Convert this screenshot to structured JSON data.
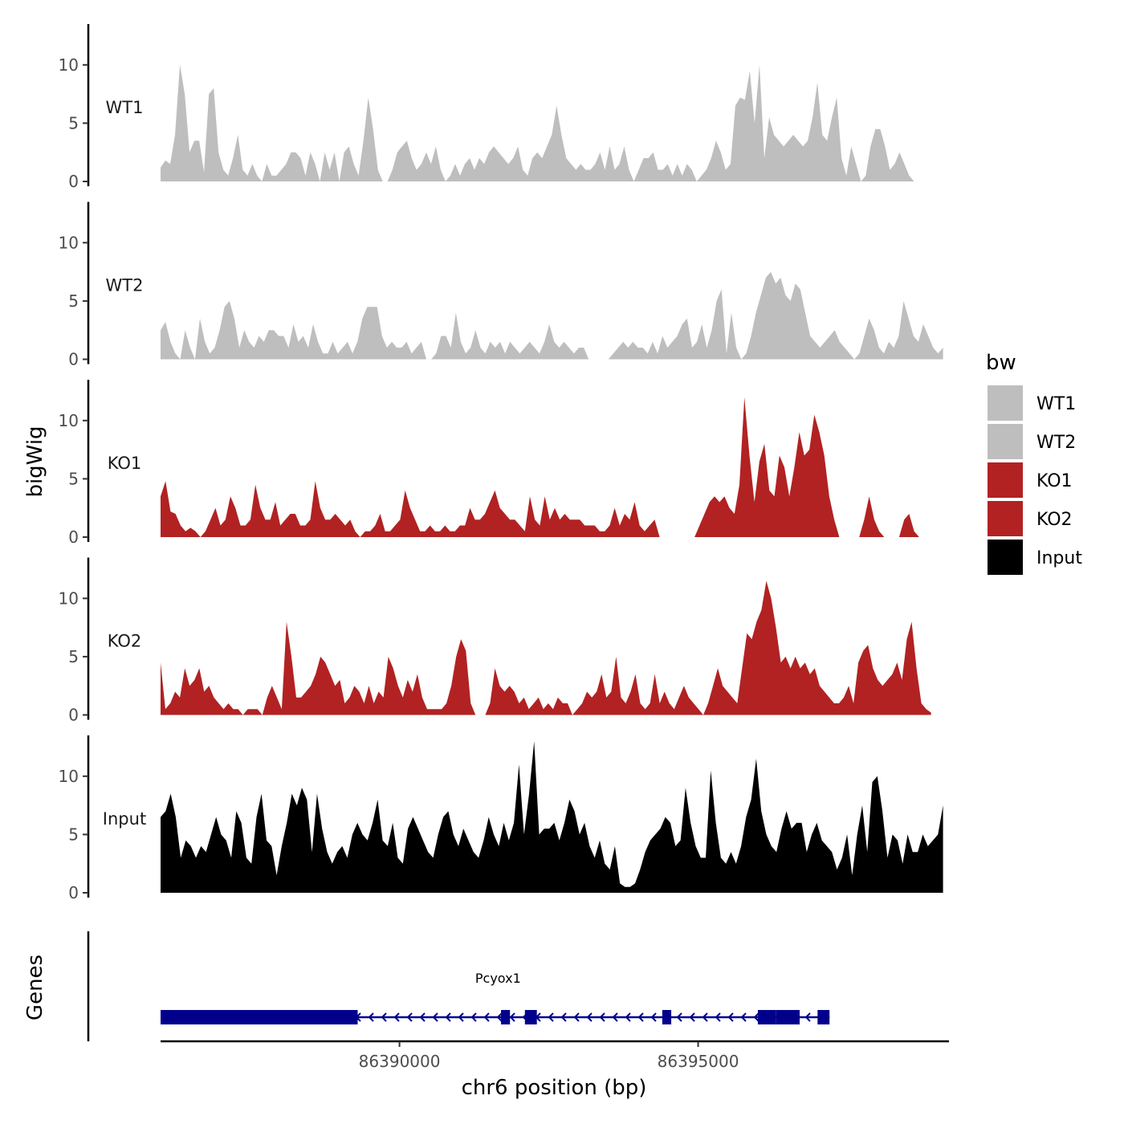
{
  "chart_data": {
    "type": "area",
    "region": {
      "chrom": "chr6",
      "start": 86386000,
      "end": 86399200
    },
    "xlabel": "chr6 position (bp)",
    "ylabel": "bigWig",
    "genes_label": "Genes",
    "x_ticks": [
      86390000,
      86395000
    ],
    "x_tick_labels": [
      "86390000",
      "86395000"
    ],
    "ylim": [
      0,
      13.5
    ],
    "y_ticks": [
      0,
      5,
      10
    ],
    "y_tick_labels": [
      "0",
      "5",
      "10"
    ],
    "legend": {
      "title": "bw",
      "entries": [
        {
          "name": "WT1",
          "color": "#BEBEBE"
        },
        {
          "name": "WT2",
          "color": "#BEBEBE"
        },
        {
          "name": "KO1",
          "color": "#B22222"
        },
        {
          "name": "KO2",
          "color": "#B22222"
        },
        {
          "name": "Input",
          "color": "#000000"
        }
      ]
    },
    "series": [
      {
        "name": "WT1",
        "color": "#BEBEBE",
        "x_start": 86386000,
        "x_end": 86399100,
        "values": [
          1.2,
          1.8,
          1.5,
          4.0,
          10.0,
          7.5,
          2.5,
          3.5,
          3.5,
          0.8,
          7.5,
          8.0,
          2.5,
          1.0,
          0.5,
          2.0,
          4.0,
          1.0,
          0.5,
          1.5,
          0.5,
          0.0,
          1.5,
          0.5,
          0.5,
          1.0,
          1.5,
          2.5,
          2.5,
          2.0,
          0.5,
          2.5,
          1.5,
          0.0,
          2.5,
          1.0,
          2.5,
          0.0,
          2.5,
          3.0,
          1.5,
          0.5,
          3.5,
          7.2,
          4.5,
          1.0,
          0.0,
          0.0,
          1.0,
          2.5,
          3.0,
          3.5,
          2.0,
          1.0,
          1.5,
          2.5,
          1.5,
          3.0,
          1.0,
          0.0,
          0.5,
          1.5,
          0.5,
          1.5,
          2.0,
          1.0,
          2.0,
          1.5,
          2.5,
          3.0,
          2.5,
          2.0,
          1.5,
          2.0,
          3.0,
          1.0,
          0.5,
          2.0,
          2.5,
          2.0,
          3.0,
          4.0,
          6.5,
          4.0,
          2.0,
          1.5,
          1.0,
          1.5,
          1.0,
          1.0,
          1.5,
          2.5,
          1.0,
          3.0,
          1.0,
          1.5,
          3.0,
          1.0,
          0.0,
          1.0,
          2.0,
          2.0,
          2.5,
          1.0,
          1.0,
          1.5,
          0.5,
          1.5,
          0.5,
          1.5,
          1.0,
          0.0,
          0.5,
          1.0,
          2.0,
          3.5,
          2.5,
          1.0,
          1.5,
          6.5,
          7.2,
          7.0,
          9.5,
          5.0,
          10.0,
          2.0,
          5.5,
          4.0,
          3.5,
          3.0,
          3.5,
          4.0,
          3.5,
          3.0,
          3.5,
          5.5,
          8.5,
          4.0,
          3.5,
          5.5,
          7.2,
          2.0,
          0.5,
          3.0,
          1.5,
          0.0,
          0.5,
          3.0,
          4.5,
          4.5,
          3.0,
          1.0,
          1.5,
          2.5,
          1.5,
          0.5,
          0.0,
          0.0,
          0.0,
          0.0,
          0.0,
          0.0,
          0.0
        ]
      },
      {
        "name": "WT2",
        "color": "#BEBEBE",
        "x_start": 86386000,
        "x_end": 86399100,
        "values": [
          2.5,
          3.2,
          1.5,
          0.5,
          0.0,
          2.5,
          1.0,
          0.0,
          3.5,
          1.5,
          0.5,
          1.0,
          2.5,
          4.5,
          5.0,
          3.5,
          1.0,
          2.5,
          1.5,
          1.0,
          2.0,
          1.5,
          2.5,
          2.5,
          2.0,
          2.0,
          1.0,
          3.0,
          1.5,
          2.0,
          1.0,
          3.0,
          1.5,
          0.5,
          0.5,
          1.5,
          0.5,
          1.0,
          1.5,
          0.5,
          1.5,
          3.5,
          4.5,
          4.5,
          4.5,
          2.0,
          1.0,
          1.5,
          1.0,
          1.0,
          1.5,
          0.5,
          1.0,
          1.5,
          0.0,
          0.0,
          0.5,
          2.0,
          2.0,
          1.0,
          4.0,
          1.5,
          0.5,
          1.0,
          2.5,
          1.0,
          0.5,
          1.5,
          1.0,
          1.5,
          0.5,
          1.5,
          1.0,
          0.5,
          1.0,
          1.5,
          1.0,
          0.5,
          1.5,
          3.0,
          1.5,
          1.0,
          1.5,
          1.0,
          0.5,
          1.0,
          1.0,
          0.0,
          0.0,
          0.0,
          0.0,
          0.0,
          0.5,
          1.0,
          1.5,
          1.0,
          1.5,
          1.0,
          1.0,
          0.5,
          1.5,
          0.5,
          2.0,
          1.0,
          1.5,
          2.0,
          3.0,
          3.5,
          1.0,
          1.5,
          3.0,
          1.0,
          2.5,
          5.0,
          6.0,
          0.5,
          4.0,
          1.0,
          0.0,
          0.5,
          2.0,
          4.0,
          5.5,
          7.0,
          7.5,
          6.5,
          7.0,
          5.5,
          5.0,
          6.5,
          6.0,
          4.0,
          2.0,
          1.5,
          1.0,
          1.5,
          2.0,
          2.5,
          1.5,
          1.0,
          0.5,
          0.0,
          0.5,
          2.0,
          3.5,
          2.5,
          1.0,
          0.5,
          1.5,
          1.0,
          2.0,
          5.0,
          3.5,
          2.0,
          1.5,
          3.0,
          2.0,
          1.0,
          0.5,
          1.0
        ]
      },
      {
        "name": "KO1",
        "color": "#B22222",
        "x_start": 86386000,
        "x_end": 86398700,
        "values": [
          3.5,
          4.8,
          2.2,
          2.0,
          1.0,
          0.5,
          0.8,
          0.5,
          0.0,
          0.5,
          1.5,
          2.5,
          1.0,
          1.5,
          3.5,
          2.5,
          1.0,
          1.0,
          1.5,
          4.5,
          2.5,
          1.5,
          1.5,
          3.0,
          1.0,
          1.5,
          2.0,
          2.0,
          1.0,
          1.0,
          1.5,
          4.8,
          2.5,
          1.5,
          1.5,
          2.0,
          1.5,
          1.0,
          1.5,
          0.5,
          0.0,
          0.5,
          0.5,
          1.0,
          2.0,
          0.5,
          0.5,
          1.0,
          1.5,
          4.0,
          2.5,
          1.5,
          0.5,
          0.5,
          1.0,
          0.5,
          0.5,
          1.0,
          0.5,
          0.5,
          1.0,
          1.0,
          2.5,
          1.5,
          1.5,
          2.0,
          3.0,
          4.0,
          2.5,
          2.0,
          1.5,
          1.5,
          1.0,
          0.5,
          3.5,
          1.5,
          1.0,
          3.5,
          1.5,
          2.5,
          1.5,
          2.0,
          1.5,
          1.5,
          1.5,
          1.0,
          1.0,
          1.0,
          0.5,
          0.5,
          1.0,
          2.5,
          1.0,
          2.0,
          1.5,
          3.0,
          1.0,
          0.5,
          1.0,
          1.5,
          0.0,
          0.0,
          0.0,
          0.0,
          0.0,
          0.0,
          0.0,
          0.0,
          1.0,
          2.0,
          3.0,
          3.5,
          3.0,
          3.5,
          2.5,
          2.0,
          4.5,
          12.0,
          7.0,
          3.0,
          6.5,
          8.0,
          4.0,
          3.5,
          7.0,
          6.0,
          3.5,
          6.0,
          9.0,
          7.0,
          7.5,
          10.5,
          9.0,
          7.0,
          3.5,
          1.5,
          0.0,
          0.0,
          0.0,
          0.0,
          0.0,
          1.5,
          3.5,
          1.5,
          0.5,
          0.0,
          0.0,
          0.0,
          0.0,
          1.5,
          2.0,
          0.5,
          0.0
        ]
      },
      {
        "name": "KO2",
        "color": "#B22222",
        "x_start": 86386000,
        "x_end": 86398900,
        "values": [
          4.5,
          0.5,
          1.0,
          2.0,
          1.5,
          4.0,
          2.5,
          3.0,
          4.0,
          2.0,
          2.5,
          1.5,
          1.0,
          0.5,
          1.0,
          0.5,
          0.5,
          0.0,
          0.5,
          0.5,
          0.5,
          0.0,
          1.5,
          2.5,
          1.5,
          0.5,
          8.0,
          5.0,
          1.5,
          1.5,
          2.0,
          2.5,
          3.5,
          5.0,
          4.5,
          3.5,
          2.5,
          3.0,
          1.0,
          1.5,
          2.5,
          2.0,
          1.0,
          2.5,
          1.0,
          2.0,
          1.5,
          5.0,
          4.0,
          2.5,
          1.5,
          3.0,
          2.0,
          3.5,
          1.5,
          0.5,
          0.5,
          0.5,
          0.5,
          1.0,
          2.5,
          5.0,
          6.5,
          5.5,
          1.0,
          0.0,
          0.0,
          0.0,
          1.0,
          4.0,
          2.5,
          2.0,
          2.5,
          2.0,
          1.0,
          1.5,
          0.5,
          1.0,
          1.5,
          0.5,
          1.0,
          0.5,
          1.5,
          1.0,
          1.0,
          0.0,
          0.5,
          1.0,
          2.0,
          1.5,
          2.0,
          3.5,
          1.5,
          2.0,
          5.0,
          1.5,
          1.0,
          2.0,
          3.5,
          1.0,
          0.5,
          1.0,
          3.5,
          1.0,
          2.0,
          1.0,
          0.5,
          1.5,
          2.5,
          1.5,
          1.0,
          0.5,
          0.0,
          1.0,
          2.5,
          4.0,
          2.5,
          2.0,
          1.5,
          1.0,
          4.0,
          7.0,
          6.5,
          8.0,
          9.0,
          11.5,
          10.0,
          7.5,
          4.5,
          5.0,
          4.0,
          5.0,
          4.0,
          4.5,
          3.5,
          4.0,
          2.5,
          2.0,
          1.5,
          1.0,
          1.0,
          1.5,
          2.5,
          1.0,
          4.5,
          5.5,
          6.0,
          4.0,
          3.0,
          2.5,
          3.0,
          3.5,
          4.5,
          3.0,
          6.5,
          8.0,
          4.0,
          1.0,
          0.5,
          0.2
        ]
      },
      {
        "name": "Input",
        "color": "#000000",
        "x_start": 86386000,
        "x_end": 86399100,
        "values": [
          6.5,
          7.0,
          8.5,
          6.5,
          3.0,
          4.5,
          4.0,
          3.0,
          4.0,
          3.5,
          5.0,
          6.5,
          5.0,
          4.5,
          3.0,
          7.0,
          6.0,
          3.0,
          2.5,
          6.5,
          8.5,
          4.5,
          4.0,
          1.5,
          4.0,
          6.0,
          8.5,
          7.5,
          9.0,
          8.0,
          3.5,
          8.5,
          5.5,
          3.5,
          2.5,
          3.5,
          4.0,
          3.0,
          5.0,
          6.0,
          5.0,
          4.5,
          6.0,
          8.0,
          4.5,
          4.0,
          6.0,
          3.0,
          2.5,
          5.5,
          6.5,
          5.5,
          4.5,
          3.5,
          3.0,
          5.0,
          6.5,
          7.0,
          5.0,
          4.0,
          5.5,
          4.5,
          3.5,
          3.0,
          4.5,
          6.5,
          5.0,
          4.0,
          6.0,
          4.5,
          6.0,
          11.0,
          5.0,
          8.5,
          13.0,
          5.0,
          5.5,
          5.5,
          6.0,
          4.5,
          6.0,
          8.0,
          7.0,
          5.0,
          6.0,
          4.0,
          3.0,
          4.5,
          2.5,
          2.0,
          4.0,
          0.8,
          0.5,
          0.5,
          0.8,
          2.0,
          3.5,
          4.5,
          5.0,
          5.5,
          6.5,
          6.0,
          4.0,
          4.5,
          9.0,
          6.0,
          4.0,
          3.0,
          3.0,
          10.5,
          6.0,
          3.0,
          2.5,
          3.5,
          2.5,
          4.0,
          6.5,
          8.0,
          11.5,
          7.0,
          5.0,
          4.0,
          3.5,
          5.5,
          7.0,
          5.5,
          6.0,
          6.0,
          3.5,
          5.0,
          6.0,
          4.5,
          4.0,
          3.5,
          2.0,
          3.0,
          5.0,
          1.5,
          5.0,
          7.5,
          3.5,
          9.5,
          10.0,
          7.0,
          3.0,
          5.0,
          4.5,
          2.5,
          5.0,
          3.5,
          3.5,
          5.0,
          4.0,
          4.5,
          5.0,
          7.5
        ]
      }
    ],
    "gene_track": {
      "gene_name": "Pcyox1",
      "strand": "-",
      "color": "#00008B",
      "tx_start": 86386000,
      "tx_end": 86397200,
      "exons": [
        {
          "start": 86386000,
          "end": 86389300,
          "kind": "utr"
        },
        {
          "start": 86388900,
          "end": 86389300,
          "kind": "cds"
        },
        {
          "start": 86391700,
          "end": 86391850,
          "kind": "cds"
        },
        {
          "start": 86392100,
          "end": 86392300,
          "kind": "cds"
        },
        {
          "start": 86394400,
          "end": 86394550,
          "kind": "cds"
        },
        {
          "start": 86396000,
          "end": 86396300,
          "kind": "cds"
        },
        {
          "start": 86396300,
          "end": 86396700,
          "kind": "cds"
        },
        {
          "start": 86397000,
          "end": 86397200,
          "kind": "cds"
        }
      ]
    }
  }
}
